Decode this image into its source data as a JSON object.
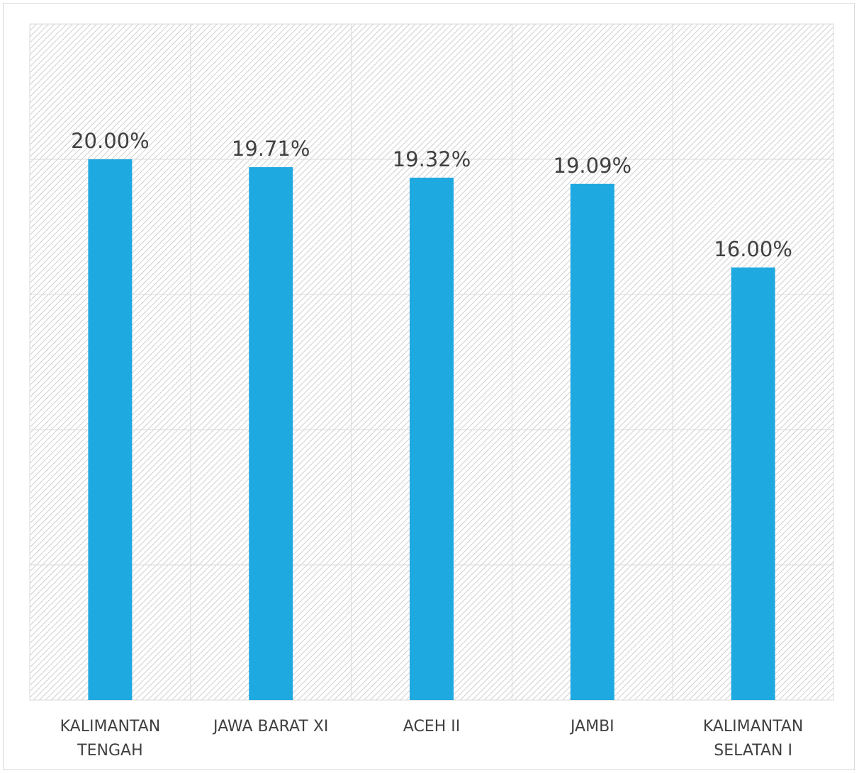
{
  "chart_data": {
    "type": "bar",
    "categories": [
      "KALIMANTAN\nTENGAH",
      "JAWA BARAT XI",
      "ACEH II",
      "JAMBI",
      "KALIMANTAN\nSELATAN I"
    ],
    "values": [
      20.0,
      19.71,
      19.32,
      19.09,
      16.0
    ],
    "data_labels": [
      "20.00%",
      "19.71%",
      "19.32%",
      "19.09%",
      "16.00%"
    ],
    "title": "",
    "xlabel": "",
    "ylabel": "",
    "ylim": [
      0,
      25
    ],
    "grid": true,
    "legend": "none",
    "bar_color": "#1FA9E1",
    "background_pattern": "diagonal-hatch"
  }
}
